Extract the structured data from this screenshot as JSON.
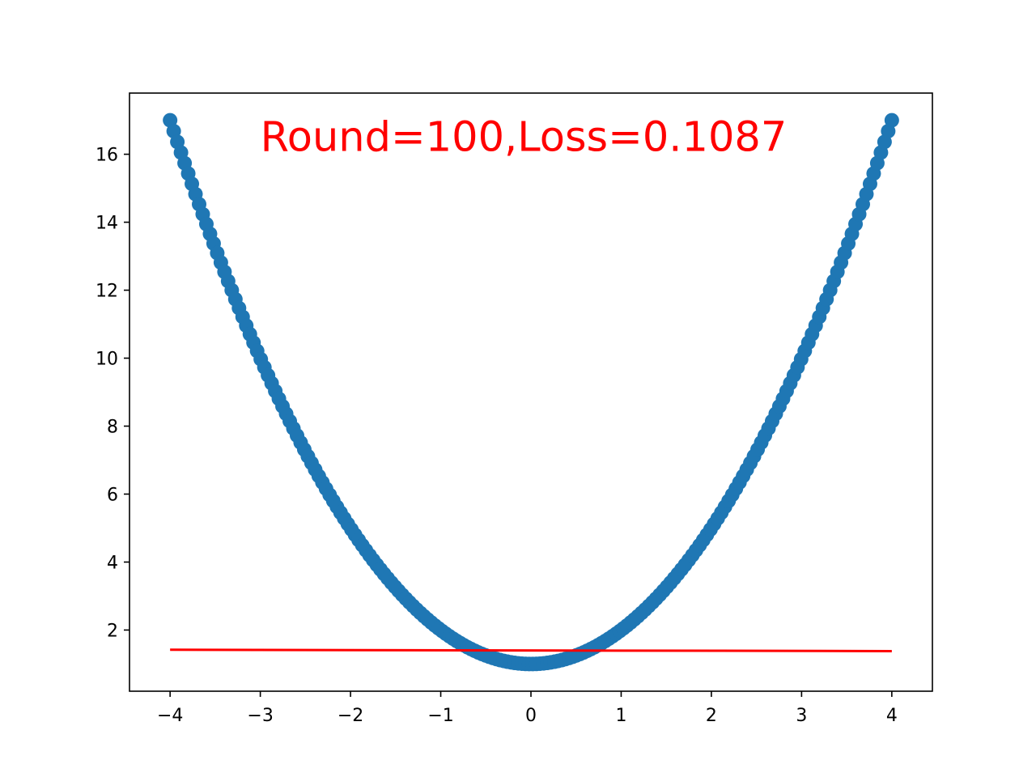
{
  "chart_data": {
    "type": "scatter",
    "title": "",
    "xlabel": "",
    "ylabel": "",
    "xlim": [
      -4.45,
      4.45
    ],
    "ylim": [
      0.2,
      17.8
    ],
    "x_ticks": [
      -4,
      -3,
      -2,
      -1,
      0,
      1,
      2,
      3,
      4
    ],
    "x_tick_labels": [
      "−4",
      "−3",
      "−2",
      "−1",
      "0",
      "1",
      "2",
      "3",
      "4"
    ],
    "y_ticks": [
      2,
      4,
      6,
      8,
      10,
      12,
      14,
      16
    ],
    "y_tick_labels": [
      "2",
      "4",
      "6",
      "8",
      "10",
      "12",
      "14",
      "16"
    ],
    "grid": false,
    "annotation": {
      "text": "Round=100,Loss=0.1087",
      "x": -3.0,
      "y": 16.1,
      "color": "#ff0000"
    },
    "series": [
      {
        "kind": "scatter",
        "formula": "y = x^2 + 1",
        "x_start": -4,
        "x_end": 4,
        "count": 200,
        "color": "#1f77b4"
      },
      {
        "kind": "line",
        "x": [
          -4,
          4
        ],
        "y": [
          1.42,
          1.38
        ],
        "color": "#ff0000"
      }
    ]
  }
}
